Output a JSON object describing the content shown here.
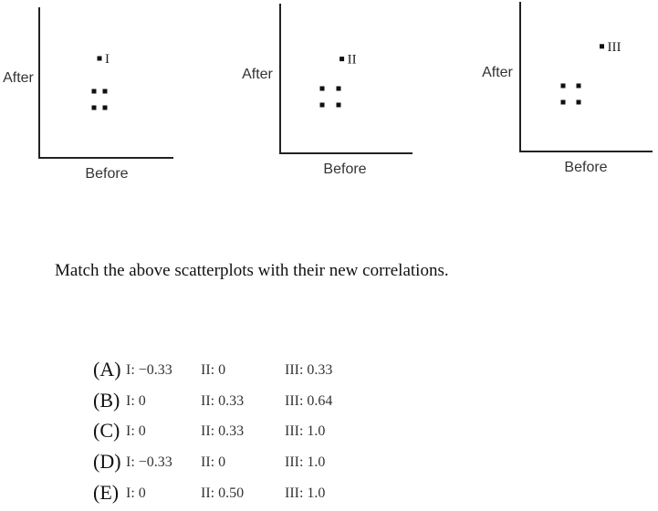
{
  "chart_data": [
    {
      "type": "scatter",
      "xlabel": "Before",
      "ylabel": "After",
      "points": [
        {
          "x": 1,
          "y": 1
        },
        {
          "x": 2,
          "y": 1
        },
        {
          "x": 1,
          "y": 2
        },
        {
          "x": 2,
          "y": 2
        },
        {
          "x": 1.5,
          "y": 4,
          "label": "I"
        }
      ]
    },
    {
      "type": "scatter",
      "xlabel": "Before",
      "ylabel": "After",
      "points": [
        {
          "x": 1,
          "y": 1
        },
        {
          "x": 2,
          "y": 1
        },
        {
          "x": 1,
          "y": 2
        },
        {
          "x": 2,
          "y": 2
        },
        {
          "x": 2.2,
          "y": 3.8,
          "label": "II"
        }
      ]
    },
    {
      "type": "scatter",
      "xlabel": "Before",
      "ylabel": "After",
      "points": [
        {
          "x": 1,
          "y": 1
        },
        {
          "x": 2,
          "y": 1
        },
        {
          "x": 1,
          "y": 2
        },
        {
          "x": 2,
          "y": 2
        },
        {
          "x": 3.5,
          "y": 4.4,
          "label": "III"
        }
      ]
    }
  ],
  "question": "Match the above scatterplots with their new correlations.",
  "choices": [
    {
      "letter": "(A)",
      "c1": "I: −0.33",
      "c2": "II:    0",
      "c3": "III: 0.33"
    },
    {
      "letter": "(B)",
      "c1": "I:     0",
      "c2": "II: 0.33",
      "c3": "III: 0.64"
    },
    {
      "letter": "(C)",
      "c1": "I:     0",
      "c2": "II: 0.33",
      "c3": "III: 1.0"
    },
    {
      "letter": "(D)",
      "c1": "I: −0.33",
      "c2": "II:    0",
      "c3": "III: 1.0"
    },
    {
      "letter": "(E)",
      "c1": "I:     0",
      "c2": "II: 0.50",
      "c3": "III: 1.0"
    }
  ]
}
